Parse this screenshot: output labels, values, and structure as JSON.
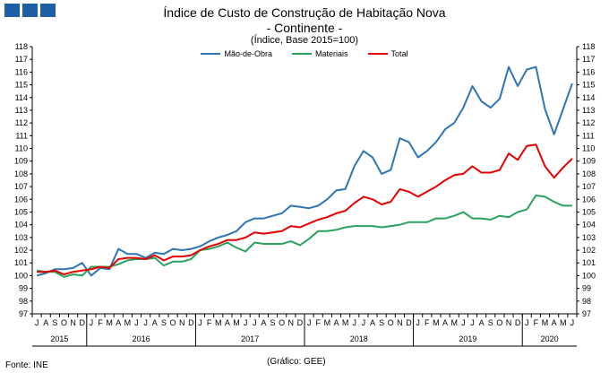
{
  "header": {
    "title": "Índice de Custo de Construção de Habitação Nova",
    "subtitle": "- Continente -",
    "subsubtitle": "(Índice, Base 2015=100)"
  },
  "footer": {
    "source": "Fonte: INE",
    "credit": "(Gráfico:  GEE)"
  },
  "chart_data": {
    "type": "line",
    "ylim": [
      97,
      118
    ],
    "y_ticks": [
      97,
      98,
      99,
      100,
      101,
      102,
      103,
      104,
      105,
      106,
      107,
      108,
      109,
      110,
      111,
      112,
      113,
      114,
      115,
      116,
      117,
      118
    ],
    "grid": false,
    "legend_position": "top-center",
    "month_labels": [
      "J",
      "A",
      "S",
      "O",
      "N",
      "D",
      "J",
      "F",
      "M",
      "A",
      "M",
      "J",
      "J",
      "A",
      "S",
      "O",
      "N",
      "D",
      "J",
      "F",
      "M",
      "A",
      "M",
      "J",
      "J",
      "A",
      "S",
      "O",
      "N",
      "D",
      "J",
      "F",
      "M",
      "A",
      "M",
      "J",
      "J",
      "A",
      "S",
      "O",
      "N",
      "D",
      "J",
      "F",
      "M",
      "A",
      "M",
      "J",
      "J",
      "A",
      "S",
      "O",
      "N",
      "D",
      "J",
      "F",
      "M",
      "A",
      "M",
      "J"
    ],
    "years": [
      {
        "label": "2015",
        "start": 0,
        "count": 6
      },
      {
        "label": "2016",
        "start": 6,
        "count": 12
      },
      {
        "label": "2017",
        "start": 18,
        "count": 12
      },
      {
        "label": "2018",
        "start": 30,
        "count": 12
      },
      {
        "label": "2019",
        "start": 42,
        "count": 12
      },
      {
        "label": "2020",
        "start": 54,
        "count": 6
      }
    ],
    "series": [
      {
        "name": "Mão-de-Obra",
        "color": "#2e75b6",
        "values": [
          100.0,
          100.2,
          100.5,
          100.5,
          100.6,
          101.0,
          100.0,
          100.6,
          100.5,
          102.1,
          101.7,
          101.7,
          101.4,
          101.8,
          101.7,
          102.1,
          102.0,
          102.1,
          102.3,
          102.7,
          103.0,
          103.2,
          103.5,
          104.2,
          104.5,
          104.5,
          104.7,
          104.9,
          105.5,
          105.4,
          105.3,
          105.5,
          106.0,
          106.7,
          106.8,
          108.6,
          109.8,
          109.3,
          108.0,
          108.3,
          110.8,
          110.5,
          109.3,
          109.8,
          110.5,
          111.5,
          112.0,
          113.2,
          114.9,
          113.7,
          113.2,
          113.9,
          116.4,
          114.9,
          116.2,
          116.4,
          113.1,
          111.1,
          113.1,
          115.1
        ]
      },
      {
        "name": "Materiais",
        "color": "#2ca25f",
        "values": [
          100.4,
          100.3,
          100.3,
          99.9,
          100.1,
          100.0,
          100.7,
          100.7,
          100.7,
          100.9,
          101.2,
          101.3,
          101.3,
          101.4,
          100.8,
          101.1,
          101.1,
          101.3,
          102.0,
          102.1,
          102.3,
          102.6,
          102.2,
          101.9,
          102.6,
          102.5,
          102.5,
          102.5,
          102.7,
          102.4,
          102.9,
          103.5,
          103.5,
          103.6,
          103.8,
          103.9,
          103.9,
          103.9,
          103.8,
          103.9,
          104.0,
          104.2,
          104.2,
          104.2,
          104.5,
          104.5,
          104.7,
          105.0,
          104.5,
          104.5,
          104.4,
          104.7,
          104.6,
          105.0,
          105.2,
          106.3,
          106.2,
          105.8,
          105.5,
          105.5
        ]
      },
      {
        "name": "Total",
        "color": "#e60000",
        "values": [
          100.3,
          100.3,
          100.4,
          100.1,
          100.3,
          100.4,
          100.5,
          100.7,
          100.6,
          101.3,
          101.4,
          101.4,
          101.3,
          101.6,
          101.2,
          101.5,
          101.5,
          101.6,
          102.0,
          102.3,
          102.5,
          102.8,
          102.8,
          103.0,
          103.4,
          103.3,
          103.4,
          103.5,
          103.9,
          103.8,
          104.1,
          104.4,
          104.6,
          104.9,
          105.1,
          105.7,
          106.2,
          106.0,
          105.6,
          105.8,
          106.8,
          106.6,
          106.2,
          106.6,
          107.0,
          107.5,
          107.9,
          108.0,
          108.6,
          108.1,
          108.1,
          108.3,
          109.6,
          109.1,
          110.2,
          110.3,
          108.6,
          107.7,
          108.5,
          109.2
        ]
      }
    ]
  }
}
